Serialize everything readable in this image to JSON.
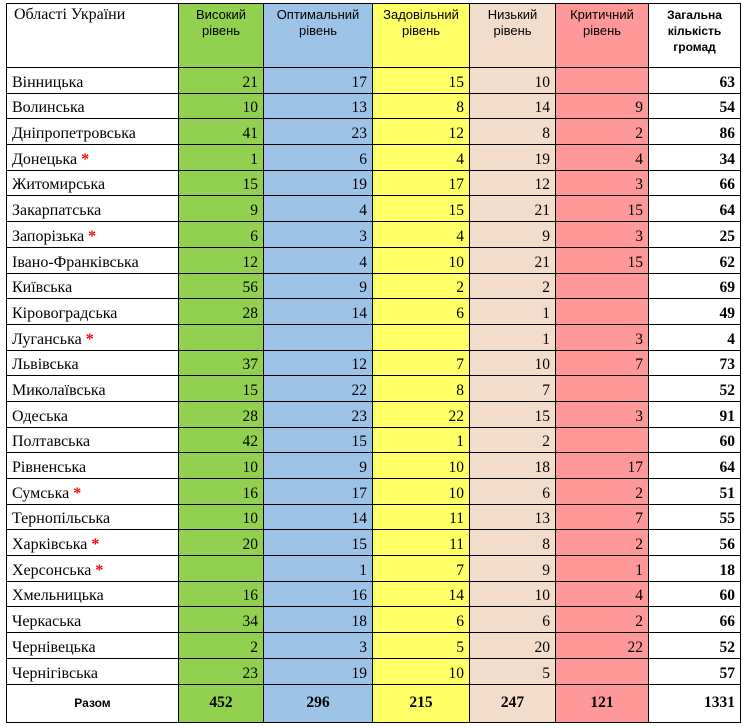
{
  "headers": {
    "region": "Області України",
    "high": [
      "Високий",
      "рівень"
    ],
    "optimal": [
      "Оптимальний",
      "рівень"
    ],
    "satisfactory": [
      "Задовільний",
      "рівень"
    ],
    "low": [
      "Низький",
      "рівень"
    ],
    "critical": [
      "Критичний",
      "рівень"
    ],
    "total": [
      "Загальна",
      "кількість",
      "громад"
    ]
  },
  "colors": {
    "high": "#92d050",
    "optimal": "#9dc3e6",
    "satisfactory": "#ffff66",
    "low": "#f4dccb",
    "critical": "#ff9999",
    "asterisk": "#ff0000"
  },
  "rows": [
    {
      "name": "Вінницька",
      "star": "",
      "high": "21",
      "optimal": "17",
      "satisfactory": "15",
      "low": "10",
      "critical": "",
      "total": "63"
    },
    {
      "name": "Волинська",
      "star": "",
      "high": "10",
      "optimal": "13",
      "satisfactory": "8",
      "low": "14",
      "critical": "9",
      "total": "54"
    },
    {
      "name": "Дніпропетровська",
      "star": "",
      "high": "41",
      "optimal": "23",
      "satisfactory": "12",
      "low": "8",
      "critical": "2",
      "total": "86"
    },
    {
      "name": "Донецька",
      "star": "*",
      "high": "1",
      "optimal": "6",
      "satisfactory": "4",
      "low": "19",
      "critical": "4",
      "total": "34"
    },
    {
      "name": "Житомирська",
      "star": "",
      "high": "15",
      "optimal": "19",
      "satisfactory": "17",
      "low": "12",
      "critical": "3",
      "total": "66"
    },
    {
      "name": "Закарпатська",
      "star": "",
      "high": "9",
      "optimal": "4",
      "satisfactory": "15",
      "low": "21",
      "critical": "15",
      "total": "64"
    },
    {
      "name": "Запорізька",
      "star": "*",
      "high": "6",
      "optimal": "3",
      "satisfactory": "4",
      "low": "9",
      "critical": "3",
      "total": "25"
    },
    {
      "name": "Івано-Франківська",
      "star": "",
      "high": "12",
      "optimal": "4",
      "satisfactory": "10",
      "low": "21",
      "critical": "15",
      "total": "62"
    },
    {
      "name": "Київська",
      "star": "",
      "high": "56",
      "optimal": "9",
      "satisfactory": "2",
      "low": "2",
      "critical": "",
      "total": "69"
    },
    {
      "name": "Кіровоградська",
      "star": "",
      "high": "28",
      "optimal": "14",
      "satisfactory": "6",
      "low": "1",
      "critical": "",
      "total": "49"
    },
    {
      "name": "Луганська",
      "star": "*",
      "high": "",
      "optimal": "",
      "satisfactory": "",
      "low": "1",
      "critical": "3",
      "total": "4"
    },
    {
      "name": "Львівська",
      "star": "",
      "high": "37",
      "optimal": "12",
      "satisfactory": "7",
      "low": "10",
      "critical": "7",
      "total": "73"
    },
    {
      "name": "Миколаївська",
      "star": "",
      "high": "15",
      "optimal": "22",
      "satisfactory": "8",
      "low": "7",
      "critical": "",
      "total": "52"
    },
    {
      "name": "Одеська",
      "star": "",
      "high": "28",
      "optimal": "23",
      "satisfactory": "22",
      "low": "15",
      "critical": "3",
      "total": "91"
    },
    {
      "name": "Полтавська",
      "star": "",
      "high": "42",
      "optimal": "15",
      "satisfactory": "1",
      "low": "2",
      "critical": "",
      "total": "60"
    },
    {
      "name": "Рівненська",
      "star": "",
      "high": "10",
      "optimal": "9",
      "satisfactory": "10",
      "low": "18",
      "critical": "17",
      "total": "64"
    },
    {
      "name": "Сумська",
      "star": "*",
      "high": "16",
      "optimal": "17",
      "satisfactory": "10",
      "low": "6",
      "critical": "2",
      "total": "51"
    },
    {
      "name": "Тернопільська",
      "star": "",
      "high": "10",
      "optimal": "14",
      "satisfactory": "11",
      "low": "13",
      "critical": "7",
      "total": "55"
    },
    {
      "name": "Харківська",
      "star": "*",
      "high": "20",
      "optimal": "15",
      "satisfactory": "11",
      "low": "8",
      "critical": "2",
      "total": "56"
    },
    {
      "name": "Херсонська",
      "star": "*",
      "high": "",
      "optimal": "1",
      "satisfactory": "7",
      "low": "9",
      "critical": "1",
      "total": "18"
    },
    {
      "name": "Хмельницька",
      "star": "",
      "high": "16",
      "optimal": "16",
      "satisfactory": "14",
      "low": "10",
      "critical": "4",
      "total": "60"
    },
    {
      "name": "Черкаська",
      "star": "",
      "high": "34",
      "optimal": "18",
      "satisfactory": "6",
      "low": "6",
      "critical": "2",
      "total": "66"
    },
    {
      "name": "Чернівецька",
      "star": "",
      "high": "2",
      "optimal": "3",
      "satisfactory": "5",
      "low": "20",
      "critical": "22",
      "total": "52"
    },
    {
      "name": "Чернігівська",
      "star": "",
      "high": "23",
      "optimal": "19",
      "satisfactory": "10",
      "low": "5",
      "critical": "",
      "total": "57"
    }
  ],
  "summary": {
    "label": "Разом",
    "high": "452",
    "optimal": "296",
    "satisfactory": "215",
    "low": "247",
    "critical": "121",
    "total": "1331"
  }
}
